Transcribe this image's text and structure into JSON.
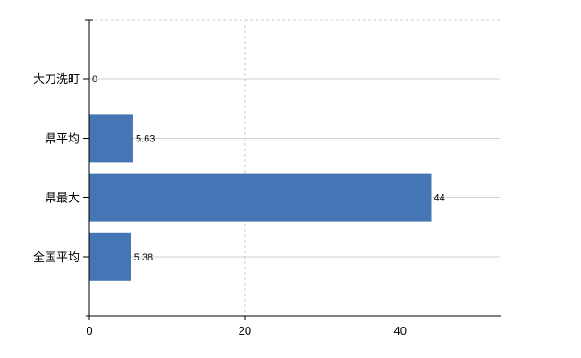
{
  "chart_data": {
    "type": "bar",
    "orientation": "horizontal",
    "title": "",
    "xlabel": "",
    "ylabel": "",
    "categories": [
      "大刀洗町",
      "県平均",
      "県最大",
      "全国平均"
    ],
    "values": [
      0,
      5.63,
      44,
      5.38
    ],
    "value_labels": [
      "0",
      "5.63",
      "44",
      "5.38"
    ],
    "x_ticks": [
      0,
      20,
      40
    ],
    "x_tick_labels": [
      "0",
      "20",
      "40"
    ],
    "xlim": [
      0,
      52.8
    ],
    "grid": true,
    "legend_position": "none",
    "colors": {
      "bar": "#4575b5",
      "axis": "#000000",
      "category_gridline": "#ccd5cc",
      "dashed_gridline": "#cccccc",
      "text": "#000000"
    }
  }
}
